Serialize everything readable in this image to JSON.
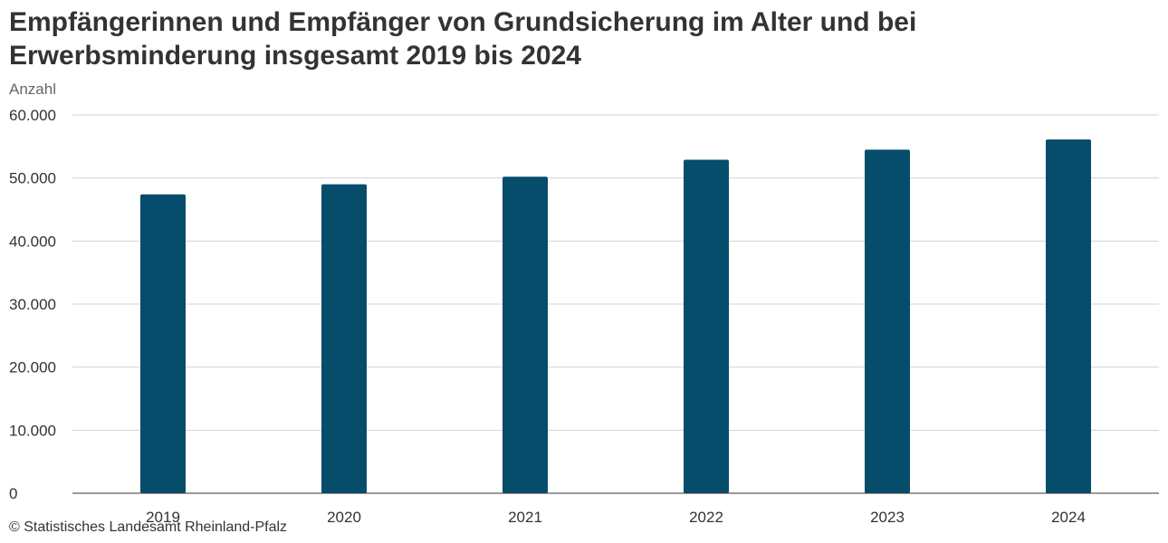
{
  "title": "Empfängerinnen und Empfänger von Grundsicherung im Alter und bei Erwerbsminderung insgesamt 2019 bis 2024",
  "unit_label": "Anzahl",
  "source": "© Statistisches Landesamt Rheinland-Pfalz",
  "colors": {
    "bar": "#064c6b",
    "grid": "#d3d3d3",
    "axis": "#333333",
    "text": "#333333",
    "muted": "#666666"
  },
  "chart_data": {
    "type": "bar",
    "title": "Empfängerinnen und Empfänger von Grundsicherung im Alter und bei Erwerbsminderung insgesamt 2019 bis 2024",
    "xlabel": "",
    "ylabel": "Anzahl",
    "categories": [
      "2019",
      "2020",
      "2021",
      "2022",
      "2023",
      "2024"
    ],
    "values": [
      47400,
      49000,
      50200,
      52900,
      54500,
      56100
    ],
    "ylim": [
      0,
      60000
    ],
    "yticks": [
      0,
      10000,
      20000,
      30000,
      40000,
      50000,
      60000
    ],
    "ytick_labels": [
      "0",
      "10.000",
      "20.000",
      "30.000",
      "40.000",
      "50.000",
      "60.000"
    ],
    "grid": true,
    "legend": "none"
  }
}
